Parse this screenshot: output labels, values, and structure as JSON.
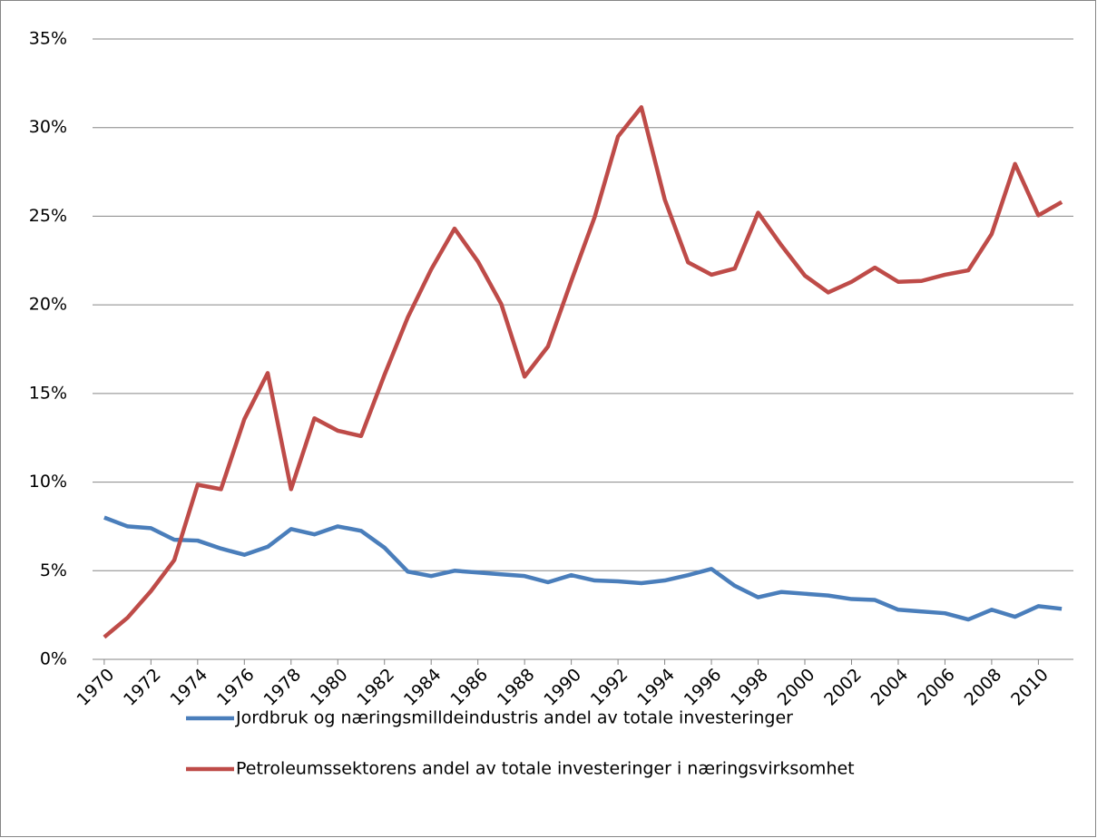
{
  "chart_data": {
    "type": "line",
    "x": [
      1970,
      1971,
      1972,
      1973,
      1974,
      1975,
      1976,
      1977,
      1978,
      1979,
      1980,
      1981,
      1982,
      1983,
      1984,
      1985,
      1986,
      1987,
      1988,
      1989,
      1990,
      1991,
      1992,
      1993,
      1994,
      1995,
      1996,
      1997,
      1998,
      1999,
      2000,
      2001,
      2002,
      2003,
      2004,
      2005,
      2006,
      2007,
      2008,
      2009,
      2010,
      2011
    ],
    "xlim": [
      1969.5,
      2011.5
    ],
    "xticks": [
      1970,
      1972,
      1974,
      1976,
      1978,
      1980,
      1982,
      1984,
      1986,
      1988,
      1990,
      1992,
      1994,
      1996,
      1998,
      2000,
      2002,
      2004,
      2006,
      2008,
      2010
    ],
    "ylim": [
      0,
      35
    ],
    "yticks": [
      {
        "value": 0,
        "label": "0%"
      },
      {
        "value": 5,
        "label": "5%"
      },
      {
        "value": 10,
        "label": "10%"
      },
      {
        "value": 15,
        "label": "15%"
      },
      {
        "value": 20,
        "label": "20%"
      },
      {
        "value": 25,
        "label": "25%"
      },
      {
        "value": 30,
        "label": "30%"
      },
      {
        "value": 35,
        "label": "35%"
      }
    ],
    "grid": true,
    "series": [
      {
        "name": "Jordbruk og næringsmilldeindustris andel av totale investeringer",
        "color": "#4a7ebb",
        "values": [
          8.0,
          7.5,
          7.4,
          6.75,
          6.7,
          6.25,
          5.9,
          6.35,
          7.35,
          7.05,
          7.5,
          7.25,
          6.3,
          4.95,
          4.7,
          5.0,
          4.9,
          4.8,
          4.7,
          4.35,
          4.75,
          4.45,
          4.4,
          4.3,
          4.45,
          4.75,
          5.1,
          4.15,
          3.5,
          3.8,
          3.7,
          3.6,
          3.4,
          3.35,
          2.8,
          2.7,
          2.6,
          2.25,
          2.8,
          2.4,
          3.0,
          2.85
        ]
      },
      {
        "name": "Petroleumssektorens andel av totale investeringer i næringsvirksomhet",
        "color": "#be4b48",
        "values": [
          1.25,
          2.35,
          3.85,
          5.6,
          9.85,
          9.6,
          13.55,
          16.15,
          9.6,
          13.6,
          12.9,
          12.6,
          16.05,
          19.3,
          22.0,
          24.3,
          22.45,
          20.05,
          15.95,
          17.65,
          21.35,
          24.95,
          29.5,
          31.15,
          25.95,
          22.4,
          21.7,
          22.05,
          25.2,
          23.35,
          21.65,
          20.7,
          21.3,
          22.1,
          21.3,
          21.35,
          21.7,
          21.95,
          24.0,
          27.95,
          25.05,
          25.8
        ]
      }
    ]
  }
}
